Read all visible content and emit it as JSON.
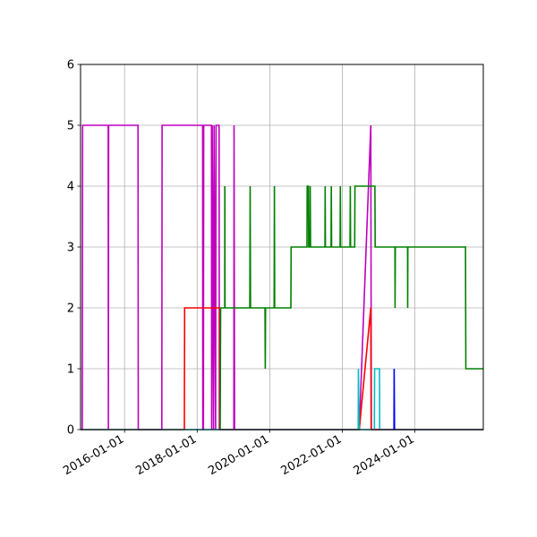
{
  "chart_data": {
    "type": "line",
    "title": "",
    "xlabel": "",
    "ylabel": "",
    "x_is_date": true,
    "xlim": [
      "2014-10-15",
      "2025-11-20"
    ],
    "ylim": [
      0,
      6
    ],
    "grid": true,
    "legend": null,
    "x_tick_labels": [
      "2016-01-01",
      "2018-01-01",
      "2020-01-01",
      "2022-01-01",
      "2024-01-01"
    ],
    "y_tick_labels": [
      "0",
      "1",
      "2",
      "3",
      "4",
      "5",
      "6"
    ],
    "y_ticks": [
      0,
      1,
      2,
      3,
      4,
      5,
      6
    ],
    "series": [
      {
        "name": "magenta",
        "color": "#bf00bf",
        "points": [
          [
            "2014-10-15",
            0
          ],
          [
            "2014-11-01",
            0
          ],
          [
            "2014-11-05",
            5
          ],
          [
            "2015-07-20",
            5
          ],
          [
            "2015-07-22",
            0
          ],
          [
            "2015-07-25",
            5
          ],
          [
            "2016-05-15",
            5
          ],
          [
            "2016-05-18",
            0
          ],
          [
            "2017-01-10",
            0
          ],
          [
            "2017-01-13",
            5
          ],
          [
            "2018-02-25",
            5
          ],
          [
            "2018-02-27",
            0
          ],
          [
            "2018-03-05",
            0
          ],
          [
            "2018-03-08",
            5
          ],
          [
            "2018-05-25",
            5
          ],
          [
            "2018-05-27",
            0
          ],
          [
            "2018-06-01",
            5
          ],
          [
            "2018-06-15",
            0
          ],
          [
            "2018-06-20",
            5
          ],
          [
            "2018-07-05",
            0
          ],
          [
            "2018-07-10",
            5
          ],
          [
            "2018-08-10",
            5
          ],
          [
            "2018-08-12",
            0
          ],
          [
            "2019-01-05",
            0
          ],
          [
            "2019-01-07",
            5
          ],
          [
            "2019-01-12",
            0
          ],
          [
            "2022-06-20",
            0
          ],
          [
            "2022-10-15",
            5
          ],
          [
            "2022-10-20",
            0
          ],
          [
            "2025-11-20",
            0
          ]
        ]
      },
      {
        "name": "red",
        "color": "#ff0000",
        "points": [
          [
            "2014-10-15",
            0
          ],
          [
            "2017-08-25",
            0
          ],
          [
            "2017-08-28",
            2
          ],
          [
            "2018-08-15",
            2
          ],
          [
            "2018-08-17",
            0
          ],
          [
            "2022-06-20",
            0
          ],
          [
            "2022-10-15",
            2
          ],
          [
            "2022-10-18",
            0
          ],
          [
            "2025-11-20",
            0
          ]
        ]
      },
      {
        "name": "green",
        "color": "#008000",
        "points": [
          [
            "2018-08-20",
            0
          ],
          [
            "2018-08-25",
            2
          ],
          [
            "2018-10-05",
            2
          ],
          [
            "2018-10-06",
            4
          ],
          [
            "2018-10-08",
            2
          ],
          [
            "2019-06-15",
            2
          ],
          [
            "2019-06-18",
            4
          ],
          [
            "2019-06-22",
            2
          ],
          [
            "2019-11-15",
            2
          ],
          [
            "2019-11-17",
            1
          ],
          [
            "2019-11-20",
            2
          ],
          [
            "2020-02-15",
            2
          ],
          [
            "2020-02-17",
            4
          ],
          [
            "2020-02-20",
            2
          ],
          [
            "2020-08-01",
            2
          ],
          [
            "2020-08-04",
            3
          ],
          [
            "2021-01-10",
            3
          ],
          [
            "2021-01-12",
            4
          ],
          [
            "2021-01-25",
            4
          ],
          [
            "2021-01-27",
            3
          ],
          [
            "2021-02-10",
            3
          ],
          [
            "2021-02-12",
            4
          ],
          [
            "2021-02-15",
            3
          ],
          [
            "2021-07-10",
            3
          ],
          [
            "2021-07-12",
            4
          ],
          [
            "2021-07-15",
            3
          ],
          [
            "2021-09-10",
            3
          ],
          [
            "2021-09-12",
            4
          ],
          [
            "2021-09-15",
            3
          ],
          [
            "2021-12-10",
            3
          ],
          [
            "2021-12-12",
            4
          ],
          [
            "2021-12-15",
            3
          ],
          [
            "2022-03-20",
            3
          ],
          [
            "2022-03-22",
            4
          ],
          [
            "2022-03-25",
            3
          ],
          [
            "2022-05-05",
            3
          ],
          [
            "2022-05-08",
            4
          ],
          [
            "2022-11-25",
            4
          ],
          [
            "2022-11-28",
            3
          ],
          [
            "2023-06-15",
            3
          ],
          [
            "2023-06-16",
            2
          ],
          [
            "2023-06-18",
            3
          ],
          [
            "2023-10-20",
            3
          ],
          [
            "2023-10-21",
            2
          ],
          [
            "2023-10-23",
            3
          ],
          [
            "2025-05-25",
            3
          ],
          [
            "2025-05-28",
            1
          ],
          [
            "2025-11-20",
            1
          ]
        ]
      },
      {
        "name": "cyan",
        "color": "#00bfbf",
        "points": [
          [
            "2014-10-15",
            0
          ],
          [
            "2022-06-10",
            0
          ],
          [
            "2022-06-12",
            1
          ],
          [
            "2022-06-18",
            0
          ],
          [
            "2022-11-20",
            0
          ],
          [
            "2022-11-22",
            1
          ],
          [
            "2023-01-10",
            1
          ],
          [
            "2023-01-12",
            0
          ],
          [
            "2025-11-20",
            0
          ]
        ]
      },
      {
        "name": "blue",
        "color": "#0000ff",
        "points": [
          [
            "2023-06-05",
            0
          ],
          [
            "2023-06-07",
            1
          ],
          [
            "2023-06-10",
            0
          ]
        ]
      }
    ]
  }
}
